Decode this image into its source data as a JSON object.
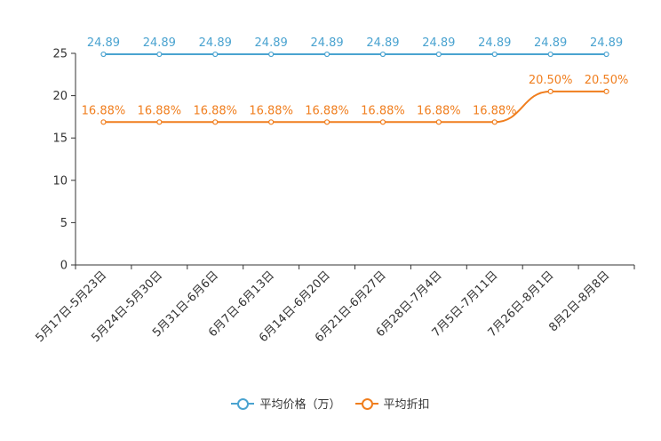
{
  "chart_data": {
    "type": "line",
    "title": "",
    "xlabel": "",
    "ylabel": "",
    "ylim": [
      0,
      25
    ],
    "yticks": [
      0,
      5,
      10,
      15,
      20,
      25
    ],
    "categories": [
      "5月17日-5月23日",
      "5月24日-5月30日",
      "5月31日-6月6日",
      "6月7日-6月13日",
      "6月14日-6月20日",
      "6月21日-6月27日",
      "6月28日-7月4日",
      "7月5日-7月11日",
      "7月26日-8月1日",
      "8月2日-8月8日"
    ],
    "series": [
      {
        "name": "平均价格（万）",
        "color": "#4aa3d0",
        "values": [
          24.89,
          24.89,
          24.89,
          24.89,
          24.89,
          24.89,
          24.89,
          24.89,
          24.89,
          24.89
        ],
        "labels": [
          "24.89",
          "24.89",
          "24.89",
          "24.89",
          "24.89",
          "24.89",
          "24.89",
          "24.89",
          "24.89",
          "24.89"
        ]
      },
      {
        "name": "平均折扣",
        "color": "#f07e1e",
        "values": [
          16.88,
          16.88,
          16.88,
          16.88,
          16.88,
          16.88,
          16.88,
          16.88,
          20.5,
          20.5
        ],
        "labels": [
          "16.88%",
          "16.88%",
          "16.88%",
          "16.88%",
          "16.88%",
          "16.88%",
          "16.88%",
          "16.88%",
          "20.50%",
          "20.50%"
        ]
      }
    ],
    "legend": "bottom-center",
    "grid": false
  }
}
